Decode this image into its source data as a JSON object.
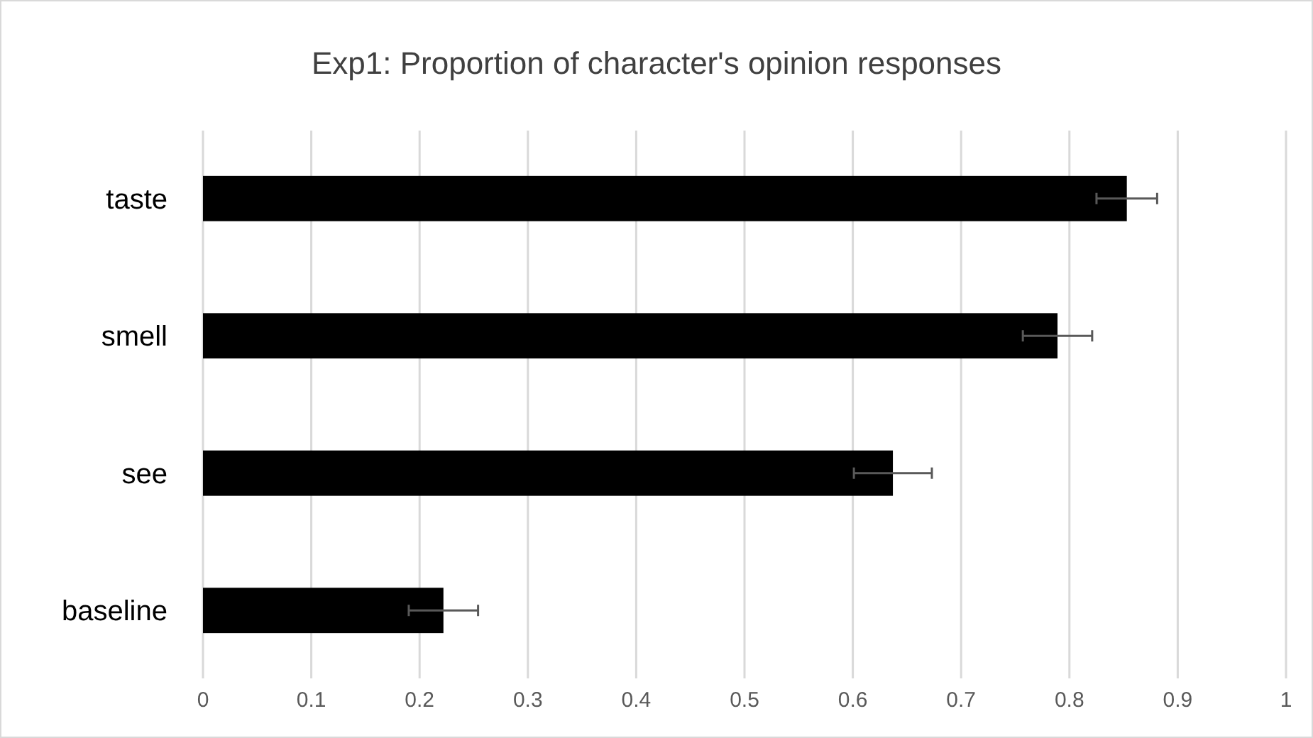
{
  "chart_data": {
    "type": "bar",
    "orientation": "horizontal",
    "title": "Exp1: Proportion of character's opinion responses",
    "categories": [
      "taste",
      "smell",
      "see",
      "baseline"
    ],
    "values": [
      0.853,
      0.789,
      0.637,
      0.222
    ],
    "errors": [
      0.028,
      0.032,
      0.036,
      0.032
    ],
    "color": "#000000",
    "xlim": [
      0,
      1
    ],
    "xticks": [
      0,
      0.1,
      0.2,
      0.3,
      0.4,
      0.5,
      0.6,
      0.7,
      0.8,
      0.9,
      1
    ],
    "grid": "x"
  }
}
